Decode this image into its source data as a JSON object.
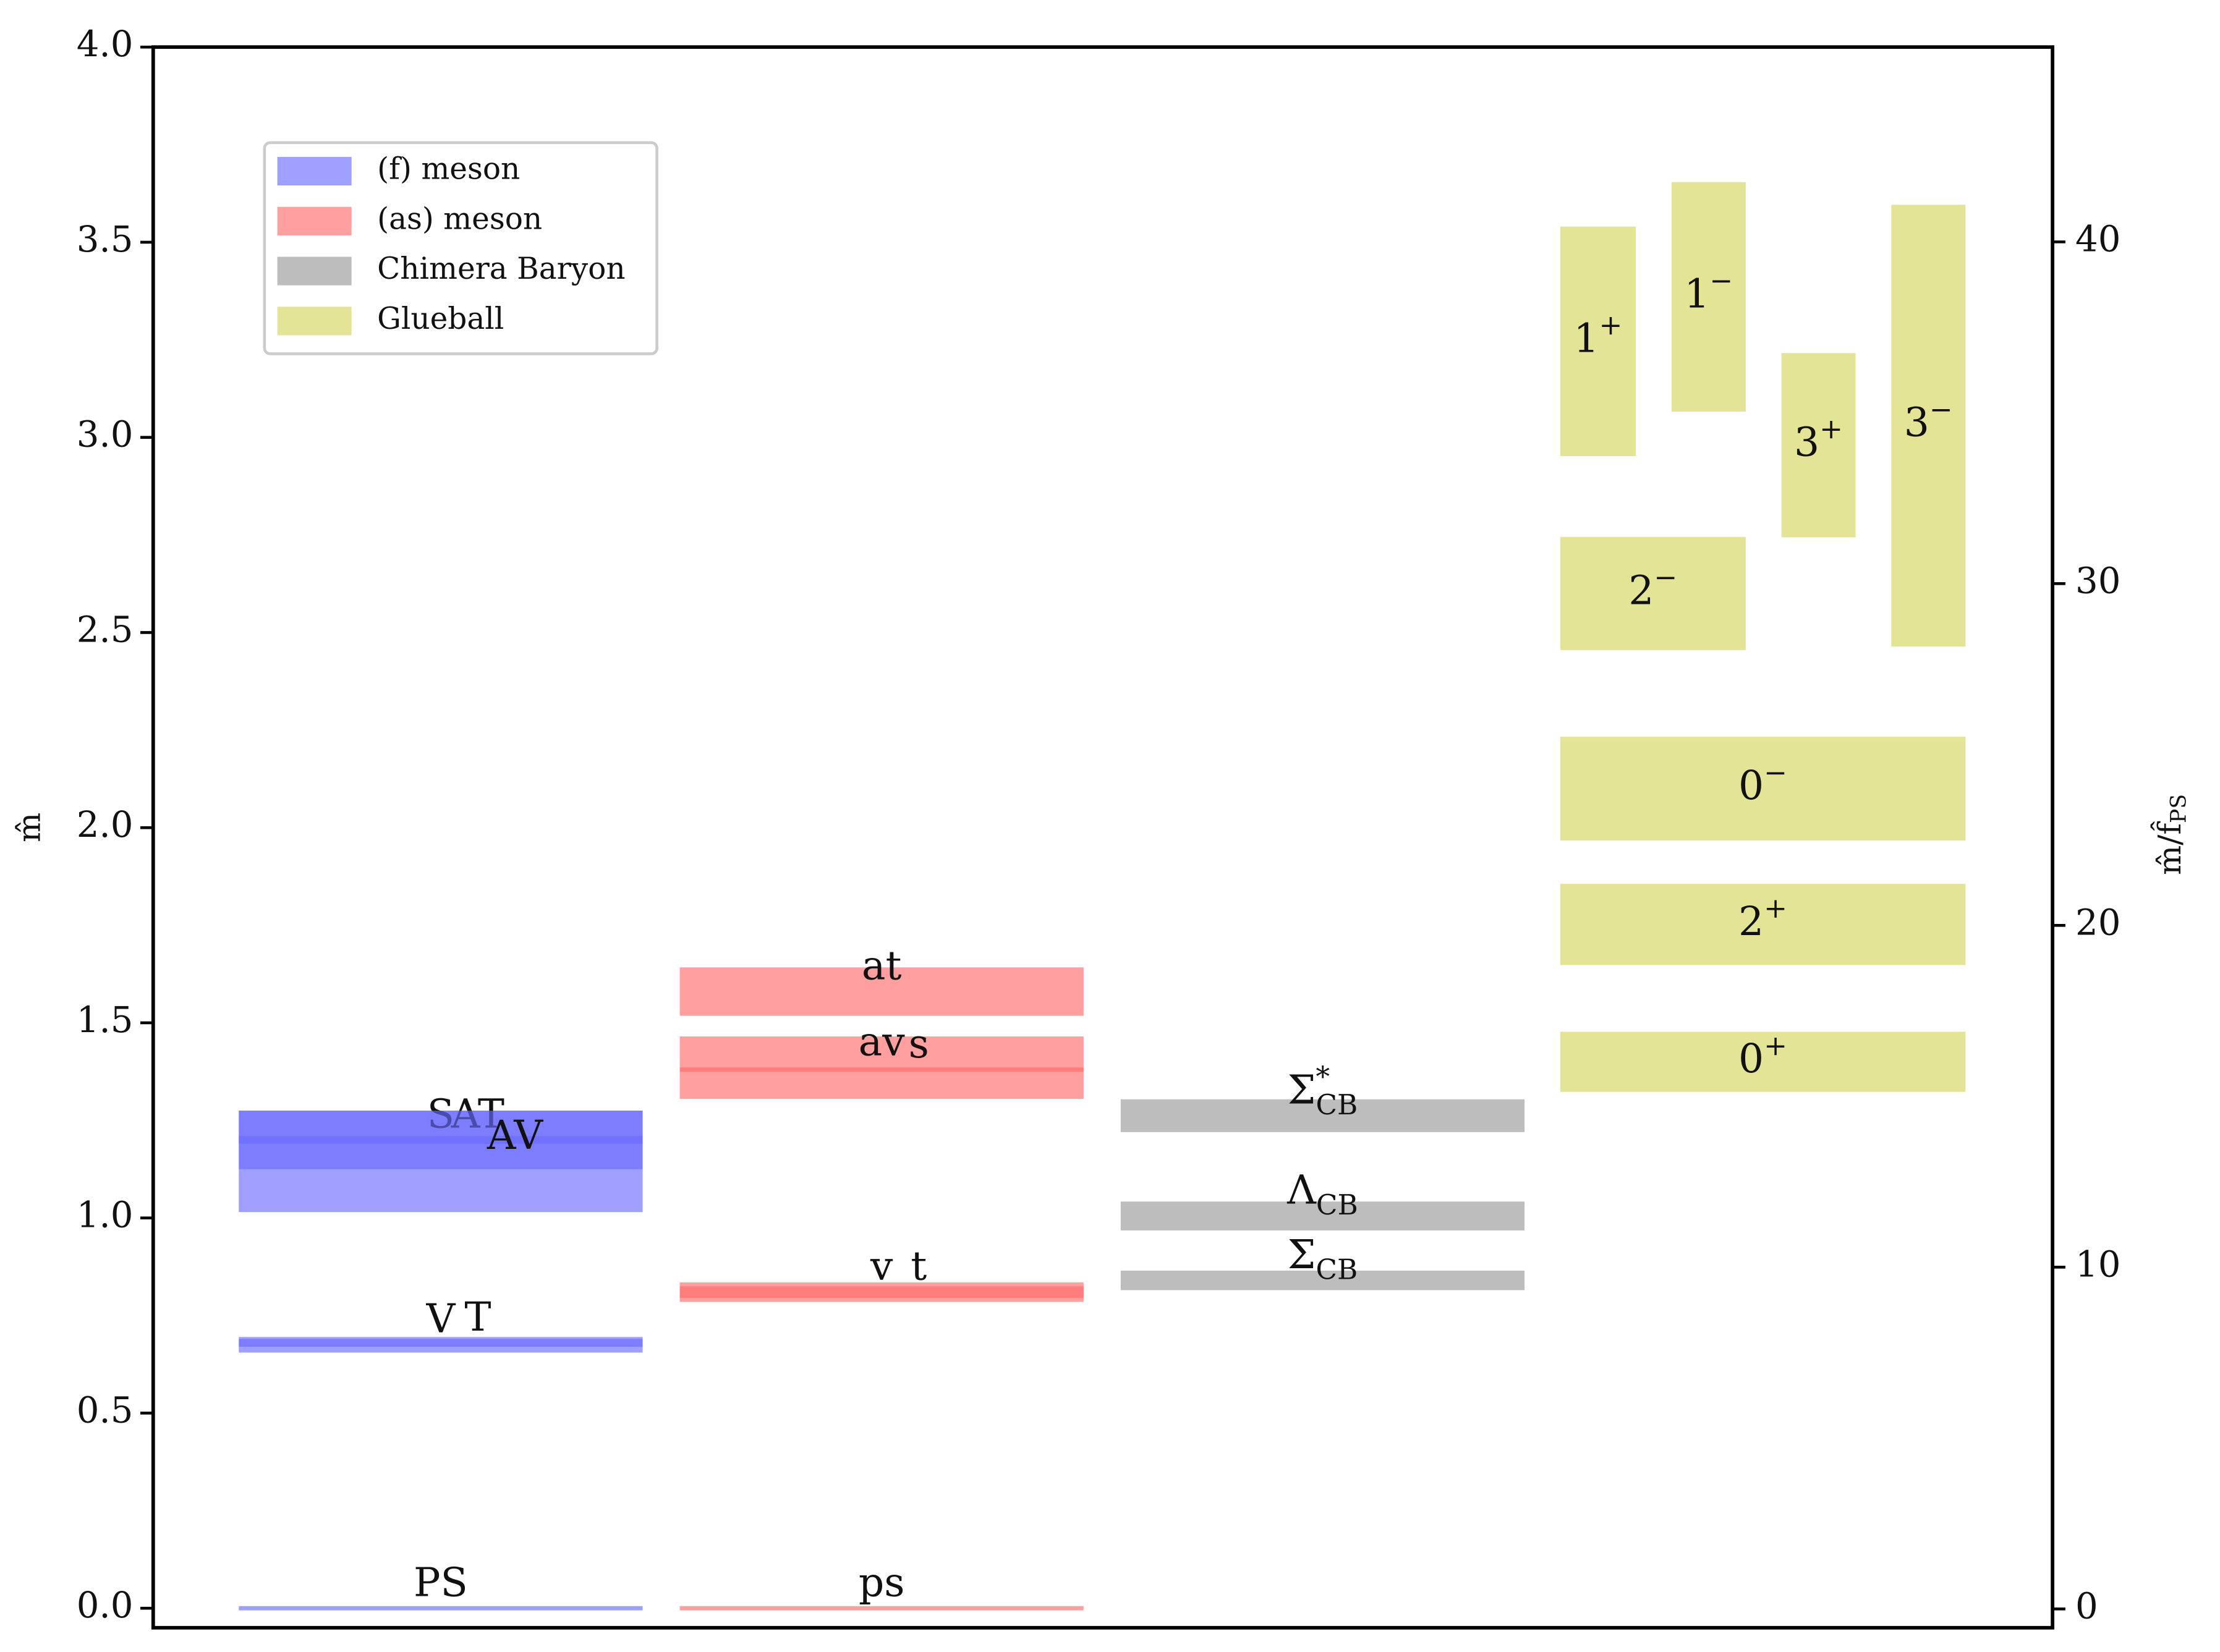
{
  "chart_data": {
    "type": "spectrum",
    "y_label": "m̂",
    "y2_label": {
      "text": "m̂/f̂",
      "sub": "PS"
    },
    "ylim": [
      -0.05,
      4.0
    ],
    "yticks": [
      {
        "value": 0,
        "label": "0.0"
      },
      0.5,
      {
        "value": 1,
        "label": "1.0"
      },
      1.5,
      {
        "value": 2,
        "label": "2.0"
      },
      2.5,
      {
        "value": 3,
        "label": "3.0"
      },
      3.5,
      {
        "value": 4,
        "label": "4.0"
      }
    ],
    "y2lim": [
      -0.55,
      45.7
    ],
    "y2ticks": [
      0,
      10,
      20,
      30,
      40
    ],
    "groups": [
      {
        "name": "(f) meson",
        "color": "#6b6bff",
        "states": [
          {
            "label": "PS",
            "mass": 0,
            "error": 0.005
          },
          {
            "label": "V",
            "mass": 0.675,
            "error": 0.02
          },
          {
            "label": "T",
            "mass": 0.68,
            "error": 0.01
          },
          {
            "label": "S",
            "mass": 1.2,
            "error": 0.075
          },
          {
            "label": "AT",
            "mass": 1.2,
            "error": 0.01
          },
          {
            "label": "AV",
            "mass": 1.145,
            "error": 0.13
          }
        ]
      },
      {
        "name": "(as) meson",
        "color": "#ff6b6b",
        "states": [
          {
            "label": "ps",
            "mass": 0,
            "error": 0.005
          },
          {
            "label": "v",
            "mass": 0.81,
            "error": 0.025
          },
          {
            "label": "t",
            "mass": 0.81,
            "error": 0.015
          },
          {
            "label": "av",
            "mass": 1.385,
            "error": 0.08
          },
          {
            "label": "s",
            "mass": 1.38,
            "error": 0.005
          },
          {
            "label": "at",
            "mass": 1.58,
            "error": 0.062
          }
        ]
      },
      {
        "name": "Chimera Baryon",
        "color": "#999999",
        "states": [
          {
            "label": "Σ",
            "sub": "CB",
            "mass": 0.84,
            "error": 0.025
          },
          {
            "label": "Λ",
            "sub": "CB",
            "mass": 1.005,
            "error": 0.037
          },
          {
            "label": "Σ",
            "sup": "*",
            "sub": "CB",
            "mass": 1.262,
            "error": 0.042
          }
        ]
      },
      {
        "name": "Glueball",
        "color": "#e4e497",
        "states": [
          {
            "label": "0",
            "sup": "+",
            "mass": 1.4,
            "error": 0.077
          },
          {
            "label": "2",
            "sup": "+",
            "mass": 1.752,
            "error": 0.104
          },
          {
            "label": "0",
            "sup": "−",
            "mass": 2.1,
            "error": 0.133
          },
          {
            "label": "2",
            "sup": "−",
            "mass": 2.6,
            "error": 0.145
          },
          {
            "label": "1",
            "sup": "+",
            "mass": 3.246,
            "error": 0.294
          },
          {
            "label": "1",
            "sup": "−",
            "mass": 3.36,
            "error": 0.294
          },
          {
            "label": "3",
            "sup": "+",
            "mass": 2.98,
            "error": 0.236
          },
          {
            "label": "3",
            "sup": "−",
            "mass": 3.03,
            "error": 0.566
          }
        ]
      }
    ]
  }
}
